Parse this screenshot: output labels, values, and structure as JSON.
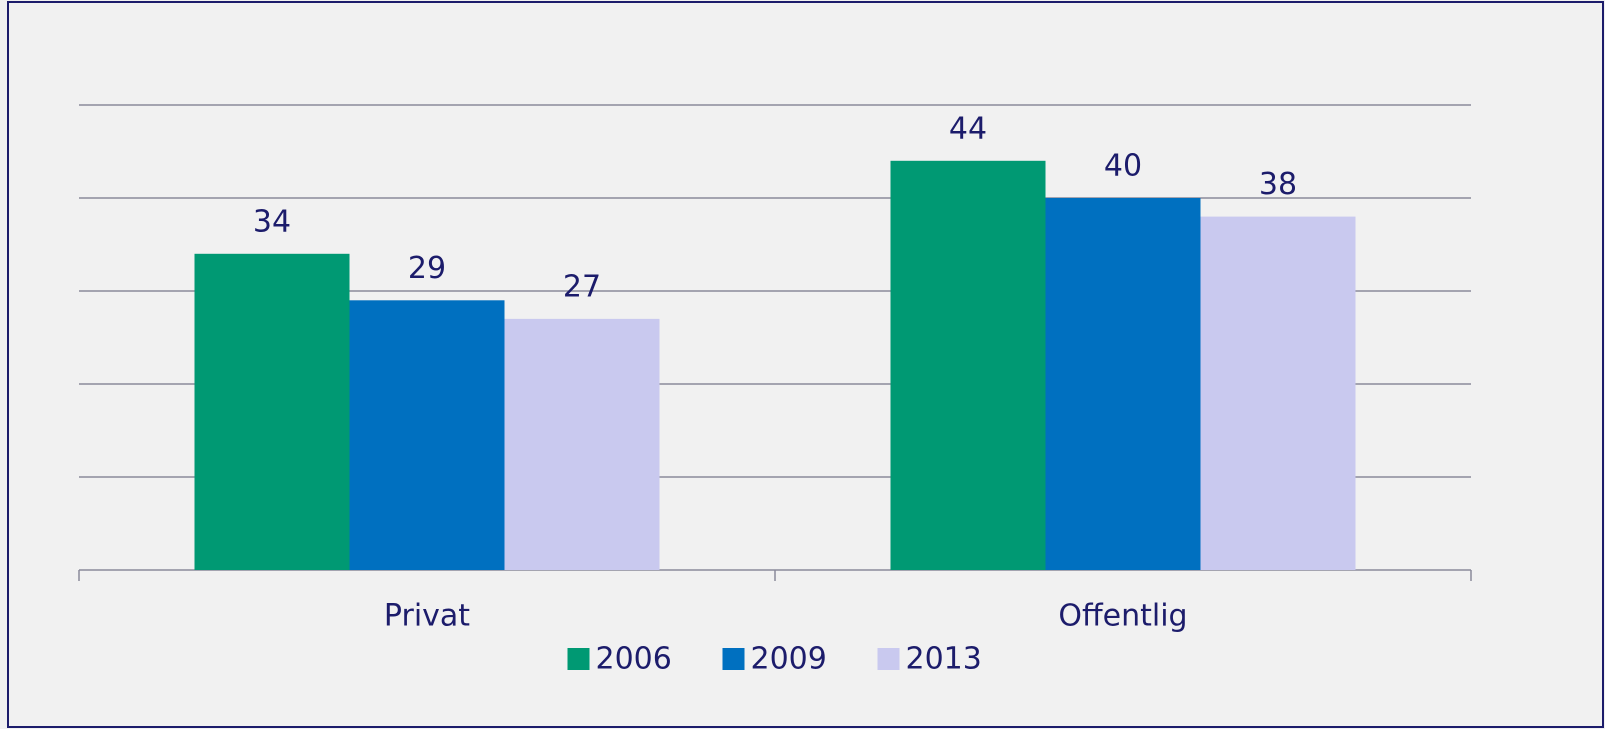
{
  "chart_data": {
    "type": "bar",
    "categories": [
      "Privat",
      "Offentlig"
    ],
    "series": [
      {
        "name": "2006",
        "color": "#009973",
        "values": [
          34,
          44
        ]
      },
      {
        "name": "2009",
        "color": "#0070c0",
        "values": [
          29,
          40
        ]
      },
      {
        "name": "2013",
        "color": "#c9c9ef",
        "values": [
          27,
          38
        ]
      }
    ],
    "ylim": [
      0,
      50
    ],
    "yticks": [
      0,
      10,
      20,
      30,
      40,
      50
    ],
    "grid": true,
    "legend": "bottom"
  }
}
